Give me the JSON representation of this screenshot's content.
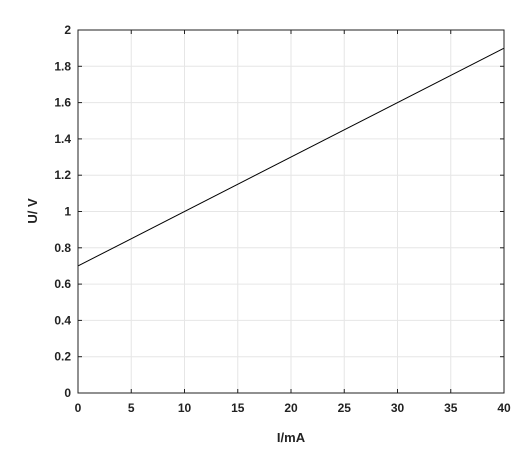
{
  "chart_data": {
    "type": "line",
    "title": "",
    "xlabel": "I/mA",
    "ylabel": "U/ V",
    "xlim": [
      0,
      40
    ],
    "ylim": [
      0,
      2
    ],
    "x_ticks": [
      0,
      5,
      10,
      15,
      20,
      25,
      30,
      35,
      40
    ],
    "y_ticks": [
      0,
      0.2,
      0.4,
      0.6,
      0.8,
      1,
      1.2,
      1.4,
      1.6,
      1.8,
      2
    ],
    "x_tick_labels": [
      "0",
      "5",
      "10",
      "15",
      "20",
      "25",
      "30",
      "35",
      "40"
    ],
    "y_tick_labels": [
      "0",
      "0.2",
      "0.4",
      "0.6",
      "0.8",
      "1",
      "1.2",
      "1.4",
      "1.6",
      "1.8",
      "2"
    ],
    "grid": true,
    "legend": "none",
    "series": [
      {
        "color": "#000000",
        "x": [
          0,
          40
        ],
        "y": [
          0.7,
          1.9
        ]
      }
    ],
    "colors": {
      "axis": "#222222",
      "grid": "#e6e6e6",
      "background": "#ffffff"
    }
  }
}
